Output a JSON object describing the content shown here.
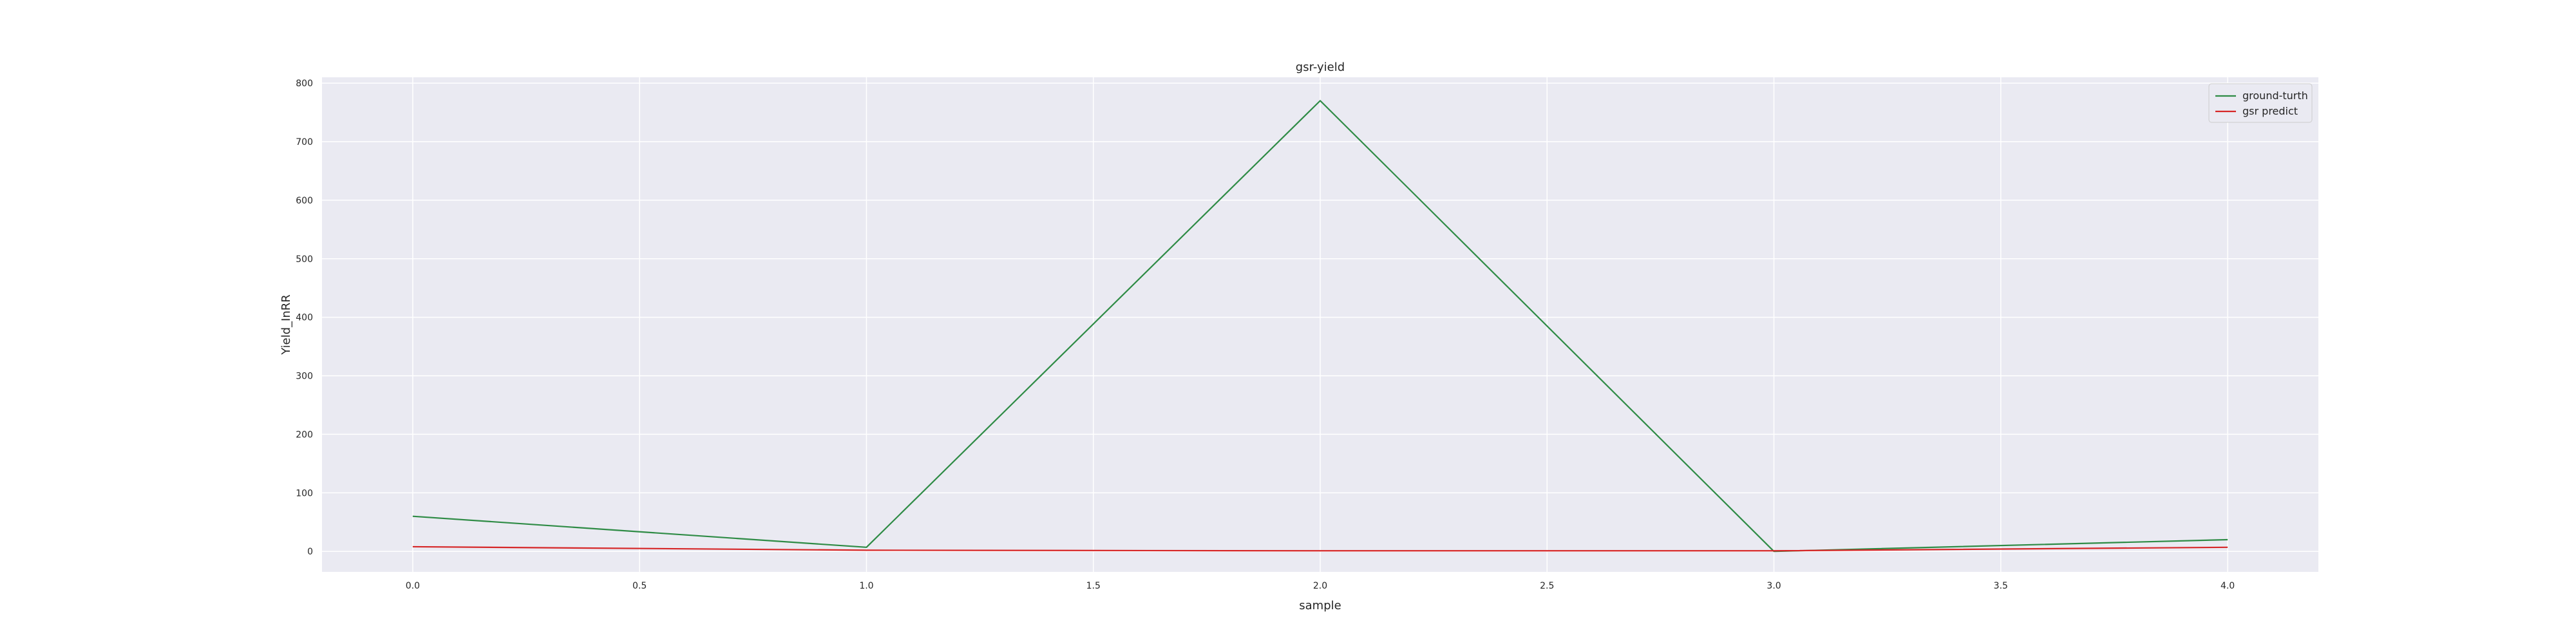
{
  "chart_data": {
    "type": "line",
    "title": "gsr-yield",
    "xlabel": "sample",
    "ylabel": "Yield_InRR",
    "xlim": [
      -0.2,
      4.2
    ],
    "ylim": [
      -35,
      810
    ],
    "x_ticks": [
      "0.0",
      "0.5",
      "1.0",
      "1.5",
      "2.0",
      "2.5",
      "3.0",
      "3.5",
      "4.0"
    ],
    "y_ticks": [
      "0",
      "100",
      "200",
      "300",
      "400",
      "500",
      "600",
      "700",
      "800"
    ],
    "grid": true,
    "legend_position": "top-right",
    "background_color": "#eaeaf2",
    "grid_color": "#ffffff",
    "series": [
      {
        "name": "ground-turth",
        "color": "#2e8b45",
        "x": [
          0,
          1,
          2,
          3,
          4
        ],
        "y": [
          60,
          7,
          770,
          0,
          20
        ]
      },
      {
        "name": "gsr predict",
        "color": "#d62728",
        "x": [
          0,
          1,
          2,
          3,
          4
        ],
        "y": [
          8,
          2,
          1,
          1,
          7
        ]
      }
    ]
  }
}
